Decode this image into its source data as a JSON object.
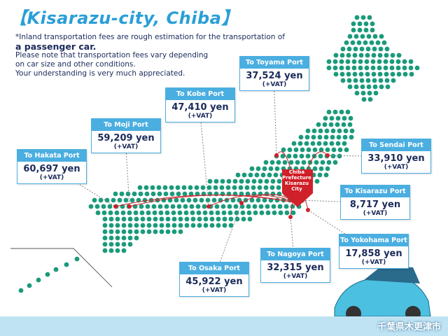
{
  "header": {
    "title": "【Kisarazu-city, Chiba】"
  },
  "notes": [
    "*Inland transportation fees are rough estimation for the transportation of",
    "a passenger car.",
    "Please note that transportation fees vary depending",
    "on car size and other conditions.",
    "Your understanding is very much appreciated."
  ],
  "origin": "Chiba Prefecture Kisarazu City",
  "footer": "千葉県木更津市",
  "ports": [
    {
      "label": "To Hakata Port",
      "price": "60,697 yen",
      "vat": "(+VAT)"
    },
    {
      "label": "To Moji Port",
      "price": "59,209 yen",
      "vat": "(+VAT)"
    },
    {
      "label": "To Kobe Port",
      "price": "47,410 yen",
      "vat": "(+VAT)"
    },
    {
      "label": "To Toyama Port",
      "price": "37,524 yen",
      "vat": "(+VAT)"
    },
    {
      "label": "To Sendai Port",
      "price": "33,910 yen",
      "vat": "(+VAT)"
    },
    {
      "label": "To Kisarazu Port",
      "price": "8,717 yen",
      "vat": "(+VAT)"
    },
    {
      "label": "To Yokohama Port",
      "price": "17,858 yen",
      "vat": "(+VAT)"
    },
    {
      "label": "To Nagoya Port",
      "price": "32,315 yen",
      "vat": "(+VAT)"
    },
    {
      "label": "To Osaka Port",
      "price": "45,922 yen",
      "vat": "(+VAT)"
    }
  ]
}
